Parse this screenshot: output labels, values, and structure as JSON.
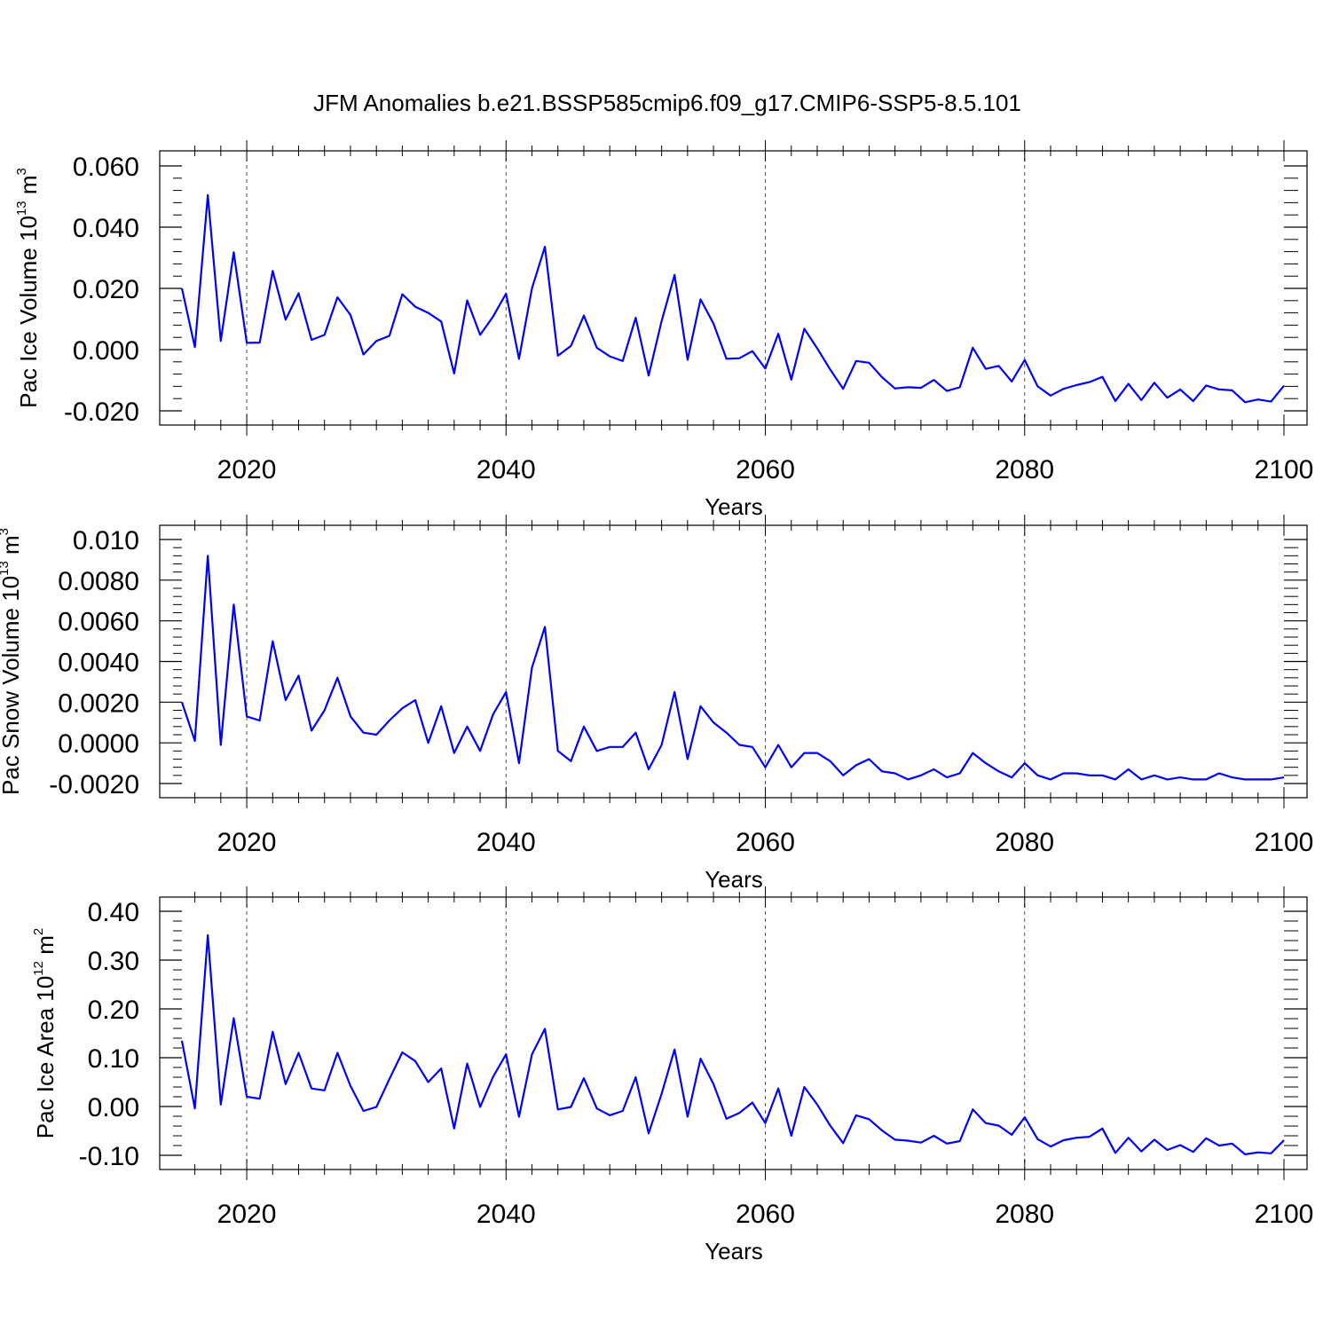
{
  "chart_data": {
    "title": "JFM Anomalies b.e21.BSSP585cmip6.f09_g17.CMIP6-SSP5-8.5.101",
    "type": "line",
    "line_color": "#0000ff",
    "x": [
      2015,
      2016,
      2017,
      2018,
      2019,
      2020,
      2021,
      2022,
      2023,
      2024,
      2025,
      2026,
      2027,
      2028,
      2029,
      2030,
      2031,
      2032,
      2033,
      2034,
      2035,
      2036,
      2037,
      2038,
      2039,
      2040,
      2041,
      2042,
      2043,
      2044,
      2045,
      2046,
      2047,
      2048,
      2049,
      2050,
      2051,
      2052,
      2053,
      2054,
      2055,
      2056,
      2057,
      2058,
      2059,
      2060,
      2061,
      2062,
      2063,
      2064,
      2065,
      2066,
      2067,
      2068,
      2069,
      2070,
      2071,
      2072,
      2073,
      2074,
      2075,
      2076,
      2077,
      2078,
      2079,
      2080,
      2081,
      2082,
      2083,
      2084,
      2085,
      2086,
      2087,
      2088,
      2089,
      2090,
      2091,
      2092,
      2093,
      2094,
      2095,
      2096,
      2097,
      2098,
      2099,
      2100
    ],
    "xlim": [
      2015,
      2100
    ],
    "xticks": [
      2020,
      2040,
      2060,
      2080,
      2100
    ],
    "xtick_labels": [
      "2020",
      "2040",
      "2060",
      "2080",
      "2100"
    ],
    "panels": [
      {
        "name": "ice-volume",
        "ylabel_main": "Pac Ice Volume 10",
        "ylabel_exp": "13",
        "ylabel_unit": " m",
        "ylabel_unit_exp": "3",
        "xlabel": "Years",
        "ylim": [
          -0.02,
          0.06
        ],
        "yticks": [
          -0.02,
          0.0,
          0.02,
          0.04,
          0.06
        ],
        "ytick_labels": [
          "-0.020",
          "0.000",
          "0.020",
          "0.040",
          "0.060"
        ],
        "values": [
          0.02,
          0.0008,
          0.0505,
          0.0028,
          0.0318,
          0.0022,
          0.0023,
          0.0257,
          0.0098,
          0.0184,
          0.0032,
          0.0048,
          0.0171,
          0.0113,
          -0.0016,
          0.0028,
          0.0045,
          0.0181,
          0.014,
          0.012,
          0.0092,
          -0.0078,
          0.0161,
          0.0048,
          0.0108,
          0.0183,
          -0.003,
          0.02,
          0.0336,
          -0.002,
          0.0012,
          0.0111,
          0.0006,
          -0.0022,
          -0.0037,
          0.0104,
          -0.0085,
          0.0093,
          0.0244,
          -0.0033,
          0.0164,
          0.0085,
          -0.003,
          -0.0028,
          -0.0005,
          -0.0062,
          0.0052,
          -0.0098,
          0.0068,
          0.0004,
          -0.0065,
          -0.0128,
          -0.0037,
          -0.0043,
          -0.009,
          -0.0127,
          -0.0123,
          -0.0125,
          -0.0099,
          -0.0135,
          -0.0123,
          0.0006,
          -0.0063,
          -0.0053,
          -0.0104,
          -0.0034,
          -0.012,
          -0.015,
          -0.0128,
          -0.0116,
          -0.0106,
          -0.0089,
          -0.0168,
          -0.0112,
          -0.0165,
          -0.0108,
          -0.0157,
          -0.013,
          -0.0168,
          -0.0117,
          -0.013,
          -0.0133,
          -0.0172,
          -0.0163,
          -0.017,
          -0.0118
        ]
      },
      {
        "name": "snow-volume",
        "ylabel_main": "Pac Snow Volume 10",
        "ylabel_exp": "13",
        "ylabel_unit": " m",
        "ylabel_unit_exp": "3",
        "xlabel": "Years",
        "ylim": [
          -0.002,
          0.01
        ],
        "yticks": [
          -0.002,
          0.0,
          0.002,
          0.004,
          0.006,
          0.008,
          0.01
        ],
        "ytick_labels": [
          "-0.0020",
          "0.0000",
          "0.0020",
          "0.0040",
          "0.0060",
          "0.0080",
          "0.010"
        ],
        "values": [
          0.002,
          0.0001,
          0.0092,
          -0.0001,
          0.0068,
          0.0013,
          0.0011,
          0.005,
          0.0021,
          0.0033,
          0.0006,
          0.0016,
          0.0032,
          0.0013,
          0.0005,
          0.0004,
          0.0011,
          0.0017,
          0.0021,
          0.0,
          0.0018,
          -0.0005,
          0.0008,
          -0.0004,
          0.0014,
          0.0025,
          -0.001,
          0.0037,
          0.0057,
          -0.0004,
          -0.0009,
          0.0008,
          -0.0004,
          -0.0002,
          -0.0002,
          0.0005,
          -0.0013,
          -0.0001,
          0.0025,
          -0.0008,
          0.0018,
          0.001,
          0.0005,
          -0.0001,
          -0.0002,
          -0.0012,
          -0.0001,
          -0.0012,
          -0.0005,
          -0.0005,
          -0.0009,
          -0.0016,
          -0.0011,
          -0.0008,
          -0.0014,
          -0.0015,
          -0.0018,
          -0.0016,
          -0.0013,
          -0.0017,
          -0.0015,
          -0.0005,
          -0.001,
          -0.0014,
          -0.0017,
          -0.001,
          -0.0016,
          -0.0018,
          -0.0015,
          -0.0015,
          -0.0016,
          -0.0016,
          -0.0018,
          -0.0013,
          -0.0018,
          -0.0016,
          -0.0018,
          -0.0017,
          -0.0018,
          -0.0018,
          -0.0015,
          -0.0017,
          -0.0018,
          -0.0018,
          -0.0018,
          -0.0017
        ]
      },
      {
        "name": "ice-area",
        "ylabel_main": "Pac Ice Area 10",
        "ylabel_exp": "12",
        "ylabel_unit": " m",
        "ylabel_unit_exp": "2",
        "xlabel": "Years",
        "ylim": [
          -0.1,
          0.4
        ],
        "yticks": [
          -0.1,
          0.0,
          0.1,
          0.2,
          0.3,
          0.4
        ],
        "ytick_labels": [
          "-0.10",
          "0.00",
          "0.10",
          "0.20",
          "0.30",
          "0.40"
        ],
        "values": [
          0.135,
          -0.004,
          0.351,
          0.004,
          0.181,
          0.02,
          0.016,
          0.153,
          0.046,
          0.11,
          0.037,
          0.033,
          0.11,
          0.042,
          -0.009,
          -0.001,
          0.056,
          0.111,
          0.093,
          0.05,
          0.078,
          -0.045,
          0.088,
          -0.001,
          0.061,
          0.107,
          -0.021,
          0.107,
          0.159,
          -0.006,
          -0.001,
          0.058,
          -0.004,
          -0.018,
          -0.009,
          0.06,
          -0.055,
          0.026,
          0.117,
          -0.021,
          0.098,
          0.046,
          -0.025,
          -0.013,
          0.008,
          -0.034,
          0.037,
          -0.06,
          0.04,
          0.004,
          -0.039,
          -0.075,
          -0.018,
          -0.026,
          -0.049,
          -0.068,
          -0.07,
          -0.074,
          -0.06,
          -0.076,
          -0.071,
          -0.006,
          -0.034,
          -0.039,
          -0.058,
          -0.022,
          -0.067,
          -0.082,
          -0.069,
          -0.064,
          -0.062,
          -0.045,
          -0.095,
          -0.064,
          -0.092,
          -0.068,
          -0.089,
          -0.079,
          -0.093,
          -0.065,
          -0.08,
          -0.076,
          -0.098,
          -0.094,
          -0.096,
          -0.069
        ]
      }
    ]
  }
}
